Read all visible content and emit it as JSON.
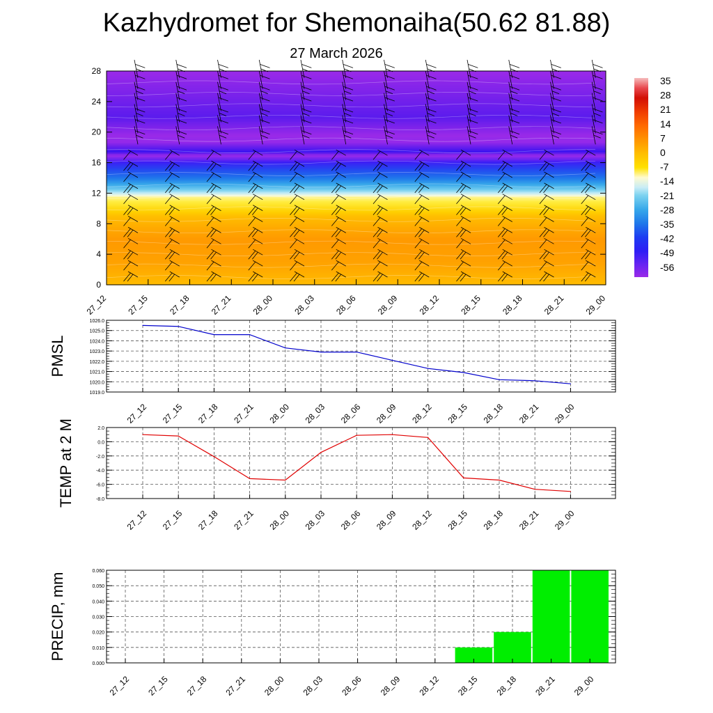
{
  "header": {
    "title": "Kazhydromet for Shemonaiha(50.62 81.88)",
    "date": "27 March 2026"
  },
  "times": [
    "27_12",
    "27_15",
    "27_18",
    "27_21",
    "28_00",
    "28_03",
    "28_06",
    "28_09",
    "28_12",
    "28_15",
    "28_18",
    "28_21",
    "29_00"
  ],
  "colorbar": {
    "labels": [
      "35",
      "28",
      "21",
      "14",
      "7",
      "0",
      "-7",
      "-14",
      "-21",
      "-28",
      "-35",
      "-42",
      "-49",
      "-56"
    ]
  },
  "chart_data": [
    {
      "type": "heatmap",
      "name": "temperature-cross-section",
      "ylabel": "",
      "y_ticks": [
        "0",
        "4",
        "8",
        "12",
        "16",
        "20",
        "24",
        "28"
      ],
      "ylim": [
        0,
        28
      ],
      "x": [
        "27_12",
        "27_15",
        "27_18",
        "27_21",
        "28_00",
        "28_03",
        "28_06",
        "28_09",
        "28_12",
        "28_15",
        "28_18",
        "28_21",
        "29_00"
      ],
      "profile": [
        {
          "level": 0,
          "value": 8
        },
        {
          "level": 3,
          "value": 11
        },
        {
          "level": 6,
          "value": 12
        },
        {
          "level": 9,
          "value": 8
        },
        {
          "level": 11.5,
          "value": 0
        },
        {
          "level": 12.5,
          "value": -15
        },
        {
          "level": 14,
          "value": -30
        },
        {
          "level": 16,
          "value": -45
        },
        {
          "level": 17.5,
          "value": -62
        },
        {
          "level": 19,
          "value": -55
        },
        {
          "level": 22,
          "value": -60
        },
        {
          "level": 28,
          "value": -56
        }
      ]
    },
    {
      "type": "line",
      "name": "pmsl",
      "ylabel": "PMSL",
      "x": [
        "27_12",
        "27_15",
        "27_18",
        "27_21",
        "28_00",
        "28_03",
        "28_06",
        "28_09",
        "28_12",
        "28_15",
        "28_18",
        "28_21",
        "29_00"
      ],
      "values": [
        1025.5,
        1025.4,
        1024.6,
        1024.6,
        1023.3,
        1022.9,
        1022.9,
        1022.1,
        1021.3,
        1020.9,
        1020.2,
        1020.1,
        1019.8
      ],
      "ylim": [
        1019.0,
        1026.0
      ],
      "y_ticks": [
        "1019.0",
        "1020.0",
        "1021.0",
        "1022.0",
        "1023.0",
        "1024.0",
        "1025.0",
        "1026.0"
      ],
      "color": "#0000cc"
    },
    {
      "type": "line",
      "name": "temp-2m",
      "ylabel": "TEMP at 2 M",
      "x": [
        "27_12",
        "27_15",
        "27_18",
        "27_21",
        "28_00",
        "28_03",
        "28_06",
        "28_09",
        "28_12",
        "28_15",
        "28_18",
        "28_21",
        "29_00"
      ],
      "values": [
        1.0,
        0.8,
        -2.1,
        -5.2,
        -5.4,
        -1.5,
        0.9,
        1.0,
        0.6,
        -5.1,
        -5.4,
        -6.7,
        -7.0
      ],
      "ylim": [
        -8.0,
        2.0
      ],
      "y_ticks": [
        "-8.0",
        "-6.0",
        "-4.0",
        "-2.0",
        "0.0",
        "2.0"
      ],
      "color": "#e00000"
    },
    {
      "type": "bar",
      "name": "precip",
      "ylabel": "PRECIP, mm",
      "categories": [
        "27_12",
        "27_15",
        "27_18",
        "27_21",
        "28_00",
        "28_03",
        "28_06",
        "28_09",
        "28_12",
        "28_15",
        "28_18",
        "28_21",
        "29_00"
      ],
      "values": [
        0,
        0,
        0,
        0,
        0,
        0,
        0,
        0,
        0,
        0.01,
        0.02,
        0.06,
        0.06
      ],
      "ylim": [
        0,
        0.06
      ],
      "y_ticks": [
        "0.000",
        "0.010",
        "0.020",
        "0.030",
        "0.040",
        "0.050",
        "0.060"
      ],
      "color": "#00ee00"
    }
  ]
}
